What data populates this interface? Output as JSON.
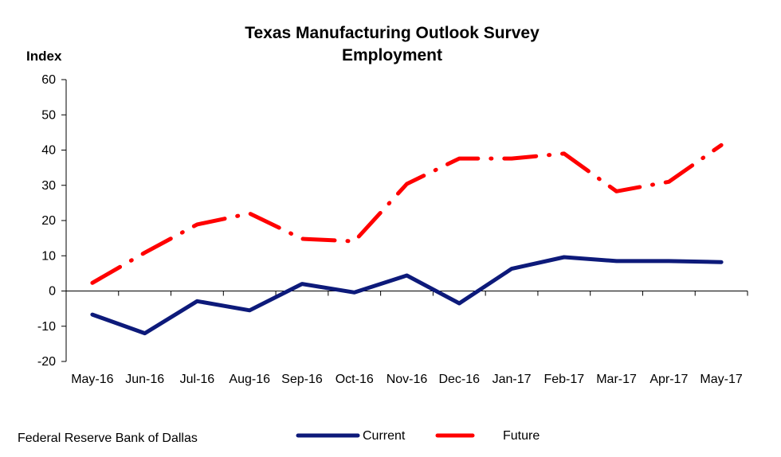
{
  "source": "Federal Reserve Bank of Dallas",
  "chart_data": {
    "type": "line",
    "title": "Texas Manufacturing Outlook Survey",
    "subtitle": "Employment",
    "ylabel": "Index",
    "xlabel": "",
    "ylim": [
      -20,
      60
    ],
    "yticks": [
      -20,
      -10,
      0,
      10,
      20,
      30,
      40,
      50,
      60
    ],
    "grid": false,
    "legend_position": "bottom",
    "categories": [
      "May-16",
      "Jun-16",
      "Jul-16",
      "Aug-16",
      "Sep-16",
      "Oct-16",
      "Nov-16",
      "Dec-16",
      "Jan-17",
      "Feb-17",
      "Mar-17",
      "Apr-17",
      "May-17"
    ],
    "series": [
      {
        "name": "Current",
        "color": "#0d1a7a",
        "style": "solid",
        "values": [
          -6.7,
          -12.0,
          -2.9,
          -5.5,
          2.0,
          -0.4,
          4.4,
          -3.5,
          6.3,
          9.6,
          8.5,
          8.5,
          8.2
        ]
      },
      {
        "name": "Future",
        "color": "#ff0000",
        "style": "dash-dot",
        "values": [
          2.3,
          10.9,
          18.9,
          22.0,
          14.8,
          14.1,
          30.4,
          37.6,
          37.6,
          39.0,
          28.3,
          31.0,
          41.4
        ]
      }
    ]
  }
}
